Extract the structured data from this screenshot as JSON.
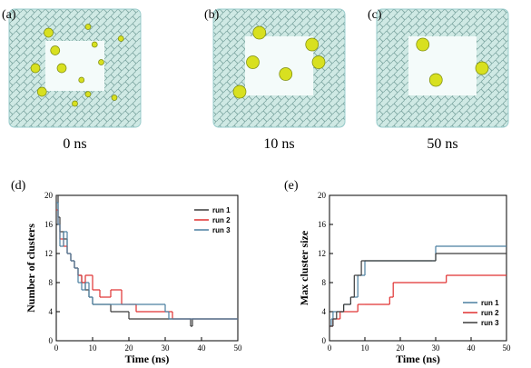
{
  "images": [
    {
      "panel_label": "(a)",
      "caption": "0 ns"
    },
    {
      "panel_label": "(b)",
      "caption": "10 ns"
    },
    {
      "panel_label": "(c)",
      "caption": "50 ns"
    }
  ],
  "chart_data": [
    {
      "type": "line",
      "drawstyle": "steps-post",
      "panel_label": "(d)",
      "xlabel": "Time (ns)",
      "ylabel": "Number of clusters",
      "xlim": [
        0,
        50
      ],
      "xticks": [
        0,
        10,
        20,
        30,
        40,
        50
      ],
      "ylim": [
        0,
        20
      ],
      "yticks": [
        0,
        4,
        8,
        12,
        16,
        20
      ],
      "legend": "upper right",
      "series": [
        {
          "name": "run 1",
          "color": "#3a3a3a",
          "x": [
            0,
            0.5,
            1,
            2,
            3,
            4,
            5,
            6,
            7,
            8,
            9,
            10,
            12,
            15,
            20,
            30,
            37,
            37.5,
            50
          ],
          "values": [
            20,
            17,
            15,
            14,
            12,
            11,
            10,
            9,
            8,
            7,
            6,
            5,
            5,
            4,
            3,
            3,
            2,
            3,
            3
          ]
        },
        {
          "name": "run 2",
          "color": "#e03030",
          "x": [
            0,
            0.5,
            1,
            2,
            3,
            4,
            5,
            6,
            7,
            8,
            10,
            12,
            15,
            18,
            22,
            30,
            32,
            50
          ],
          "values": [
            18,
            16,
            14,
            13,
            12,
            11,
            10,
            9,
            8,
            9,
            7,
            6,
            7,
            5,
            4,
            4,
            3,
            3
          ]
        },
        {
          "name": "run 3",
          "color": "#4a7fa0",
          "x": [
            0,
            0.5,
            1,
            2,
            3,
            4,
            5,
            6,
            7,
            8,
            9,
            10,
            13,
            17,
            20,
            30,
            31,
            50
          ],
          "values": [
            19,
            16,
            13,
            15,
            12,
            11,
            10,
            8,
            7,
            8,
            6,
            5,
            5,
            5,
            5,
            4,
            3,
            3
          ]
        }
      ]
    },
    {
      "type": "line",
      "drawstyle": "steps-post",
      "panel_label": "(e)",
      "xlabel": "Time (ns)",
      "ylabel": "Max cluster size",
      "xlim": [
        0,
        50
      ],
      "xticks": [
        0,
        10,
        20,
        30,
        40,
        50
      ],
      "ylim": [
        0,
        20
      ],
      "yticks": [
        0,
        4,
        8,
        12,
        16,
        20
      ],
      "legend": "lower right",
      "series": [
        {
          "name": "run 1",
          "color": "#4a7fa0",
          "x": [
            0,
            0.5,
            1,
            2,
            3,
            4,
            5,
            6,
            7,
            8,
            10,
            30,
            50
          ],
          "values": [
            2,
            3,
            4,
            4,
            4,
            5,
            5,
            6,
            6,
            9,
            11,
            13,
            13
          ]
        },
        {
          "name": "run 2",
          "color": "#e03030",
          "x": [
            0,
            1,
            2,
            3,
            5,
            8,
            10,
            17,
            18,
            33,
            50
          ],
          "values": [
            2,
            3,
            3,
            4,
            4,
            5,
            5,
            6,
            8,
            9,
            9
          ]
        },
        {
          "name": "run 3",
          "color": "#3a3a3a",
          "x": [
            0,
            1,
            2,
            4,
            6,
            7,
            9,
            29,
            30,
            50
          ],
          "values": [
            2,
            3,
            4,
            5,
            6,
            9,
            11,
            11,
            12,
            12
          ]
        }
      ]
    }
  ]
}
